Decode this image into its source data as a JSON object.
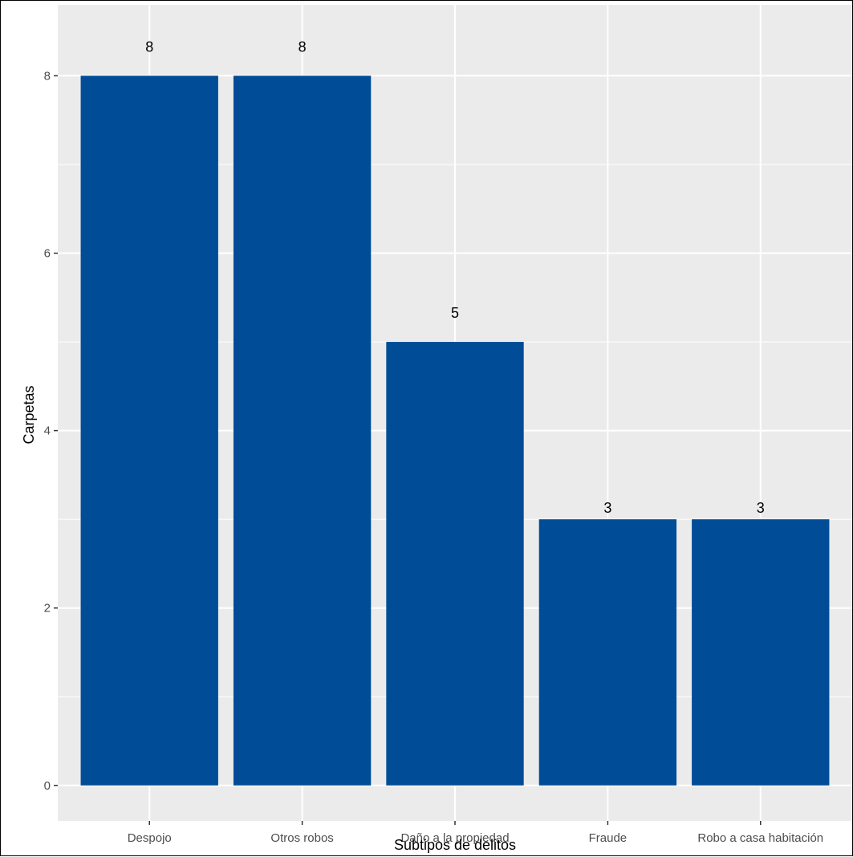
{
  "chart_data": {
    "type": "bar",
    "categories": [
      "Despojo",
      "Otros robos",
      "Daño a la propiedad",
      "Fraude",
      "Robo a casa habitación"
    ],
    "values": [
      8,
      8,
      5,
      3,
      3
    ],
    "data_labels": [
      "8",
      "8",
      "5",
      "3",
      "3"
    ],
    "title": "",
    "xlabel": "Subtipos de delitos",
    "ylabel": "Carpetas",
    "ylim": [
      -0.4,
      8.8
    ],
    "yticks": [
      0,
      2,
      4,
      6,
      8
    ],
    "grid": true,
    "legend": "none",
    "colors": {
      "bar": "#004C97",
      "panel": "#EBEBEB",
      "grid": "#FFFFFF"
    }
  }
}
